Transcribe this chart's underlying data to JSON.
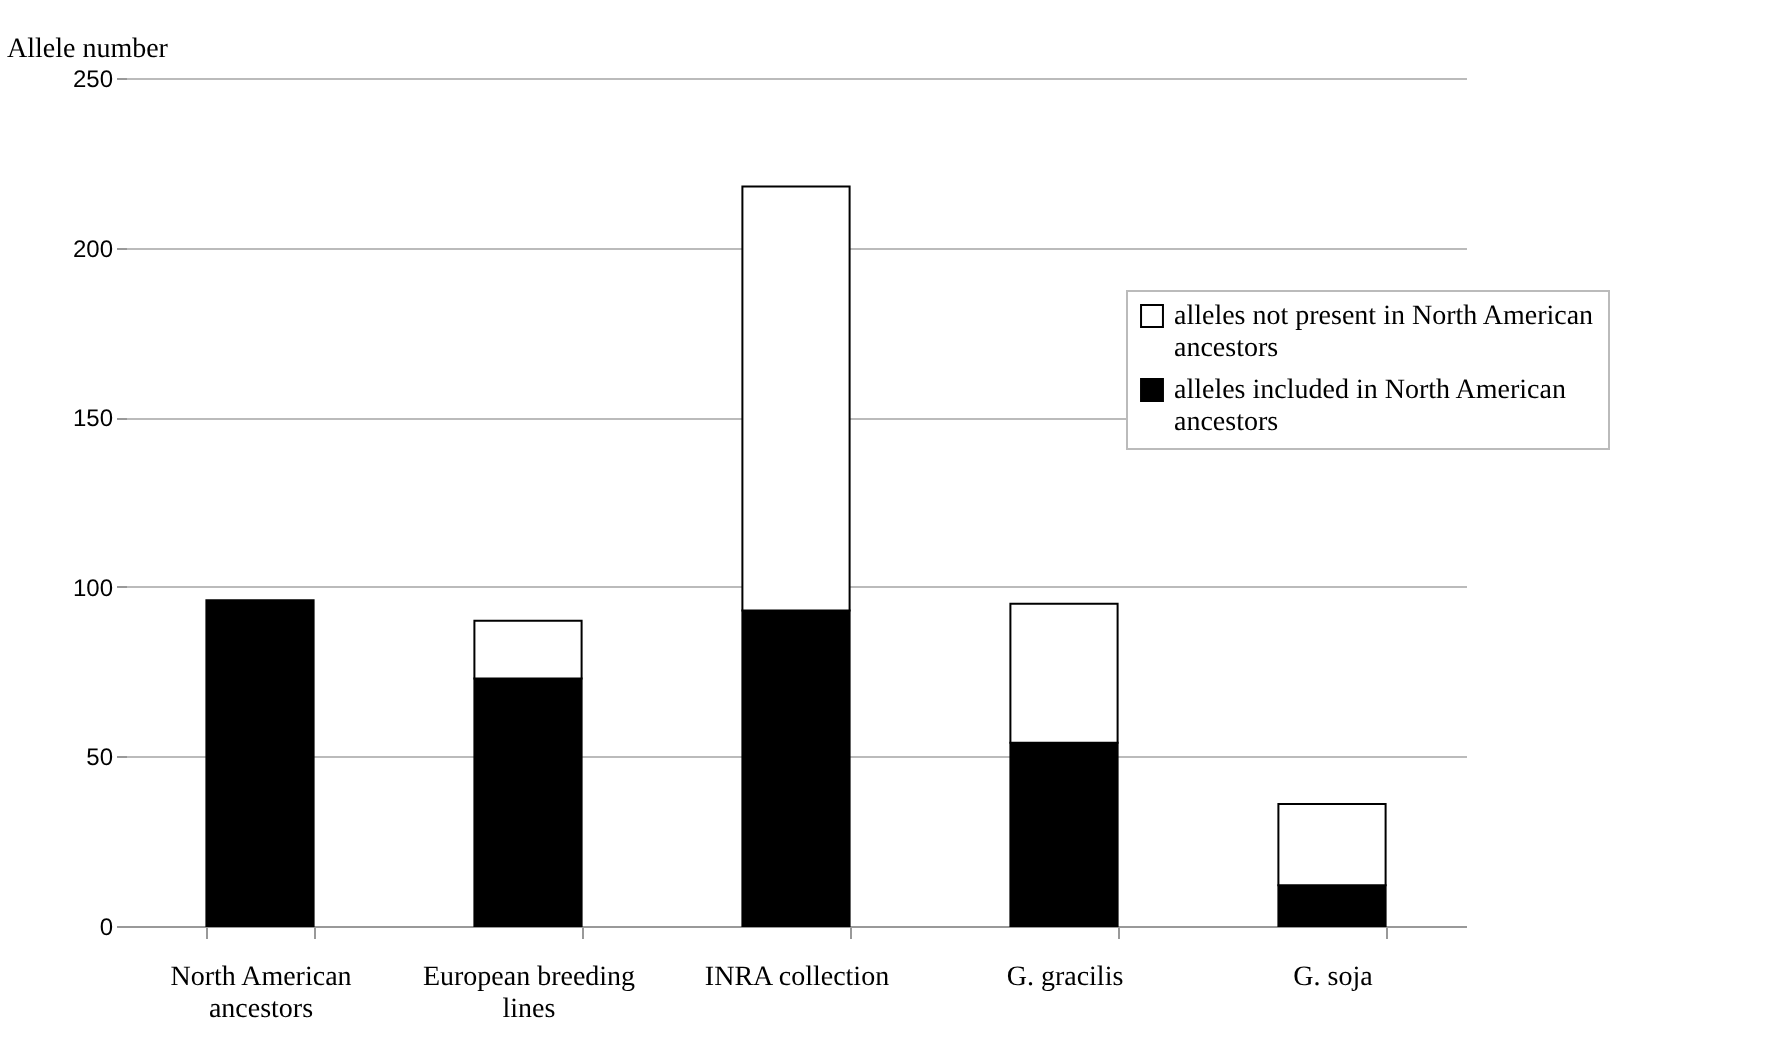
{
  "chart_data": {
    "type": "bar",
    "ylabel": "Allele number",
    "categories": [
      "North American ancestors",
      "European breeding lines",
      "INRA collection",
      "G. gracilis",
      "G. soja"
    ],
    "stacked": true,
    "series": [
      {
        "name": "alleles included in North American ancestors",
        "color": "#000000",
        "values": [
          96,
          73,
          93,
          54,
          12
        ]
      },
      {
        "name": "alleles not present in North American ancestors",
        "color": "#ffffff",
        "values": [
          0,
          17,
          125,
          41,
          24
        ]
      }
    ],
    "ylim": [
      0,
      250
    ],
    "yticks": [
      0,
      50,
      100,
      150,
      200,
      250
    ],
    "grid": "y",
    "legend": "top right"
  }
}
